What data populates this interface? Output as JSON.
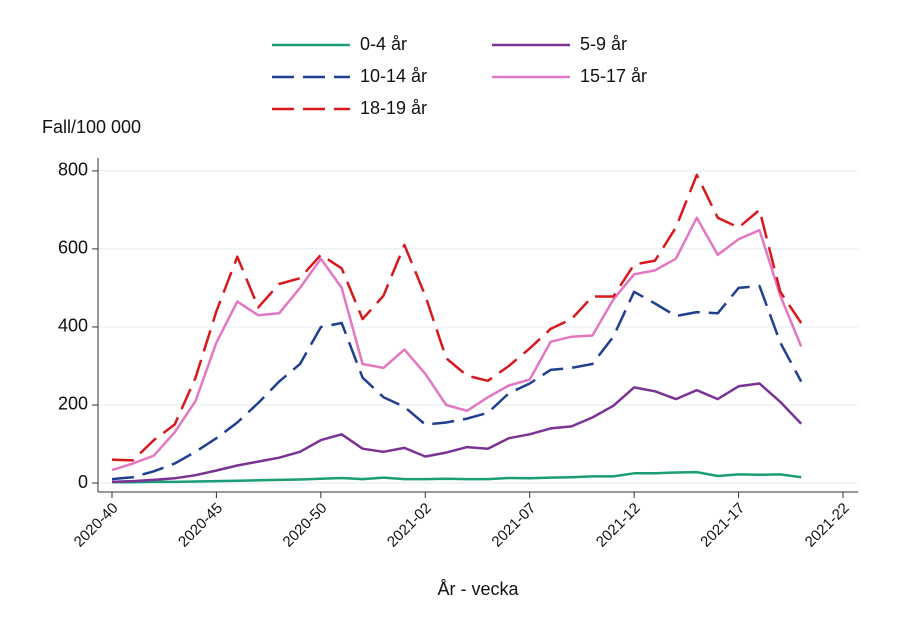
{
  "chart_data": {
    "type": "line",
    "y_label": "Fall/100 000",
    "x_label": "År - vecka",
    "categories": [
      "2020-40",
      null,
      null,
      null,
      null,
      "2020-45",
      null,
      null,
      null,
      null,
      "2020-50",
      null,
      null,
      null,
      null,
      "2021-02",
      null,
      null,
      null,
      null,
      "2021-07",
      null,
      null,
      null,
      null,
      "2021-12",
      null,
      null,
      null,
      null,
      "2021-17",
      null,
      null,
      null,
      null,
      "2021-22"
    ],
    "ylim": [
      -23,
      833
    ],
    "yticks": [
      0,
      200,
      400,
      600,
      800
    ],
    "grid": true,
    "legend": "top",
    "series": [
      {
        "name": "0-4 år",
        "color": "#1a9e77",
        "dashed": false,
        "values": [
          2,
          2,
          3,
          3,
          4,
          5,
          6,
          7,
          8,
          9,
          11,
          13,
          10,
          14,
          10,
          10,
          11,
          10,
          10,
          13,
          12,
          14,
          15,
          17,
          17,
          25,
          25,
          27,
          28,
          18,
          22,
          21,
          22,
          15,
          null,
          null
        ]
      },
      {
        "name": "5-9 år",
        "color": "#7b3294",
        "dashed": false,
        "values": [
          3,
          5,
          8,
          12,
          20,
          32,
          45,
          55,
          65,
          80,
          110,
          125,
          88,
          80,
          90,
          68,
          78,
          92,
          88,
          115,
          125,
          140,
          145,
          168,
          198,
          245,
          235,
          215,
          238,
          215,
          248,
          255,
          208,
          152,
          null,
          null
        ]
      },
      {
        "name": "10-14 år",
        "color": "#1f3f8f",
        "dashed": true,
        "values": [
          10,
          15,
          30,
          50,
          80,
          115,
          155,
          205,
          260,
          305,
          400,
          410,
          270,
          220,
          195,
          150,
          155,
          165,
          180,
          230,
          255,
          290,
          295,
          305,
          375,
          490,
          460,
          428,
          438,
          435,
          500,
          505,
          360,
          260,
          null,
          null
        ]
      },
      {
        "name": "15-17 år",
        "color": "#e377c2",
        "dashed": false,
        "values": [
          33,
          50,
          70,
          130,
          210,
          360,
          465,
          430,
          435,
          500,
          575,
          500,
          305,
          295,
          342,
          280,
          200,
          185,
          220,
          250,
          265,
          362,
          375,
          378,
          470,
          535,
          545,
          575,
          680,
          585,
          625,
          648,
          480,
          350,
          null,
          null
        ]
      },
      {
        "name": "18-19 år",
        "color": "#d7191c",
        "dashed": true,
        "values": [
          60,
          58,
          110,
          150,
          270,
          440,
          580,
          450,
          510,
          525,
          585,
          550,
          420,
          480,
          610,
          480,
          320,
          275,
          262,
          300,
          345,
          395,
          420,
          478,
          478,
          560,
          570,
          655,
          790,
          680,
          655,
          700,
          490,
          410,
          null,
          null
        ]
      }
    ]
  }
}
